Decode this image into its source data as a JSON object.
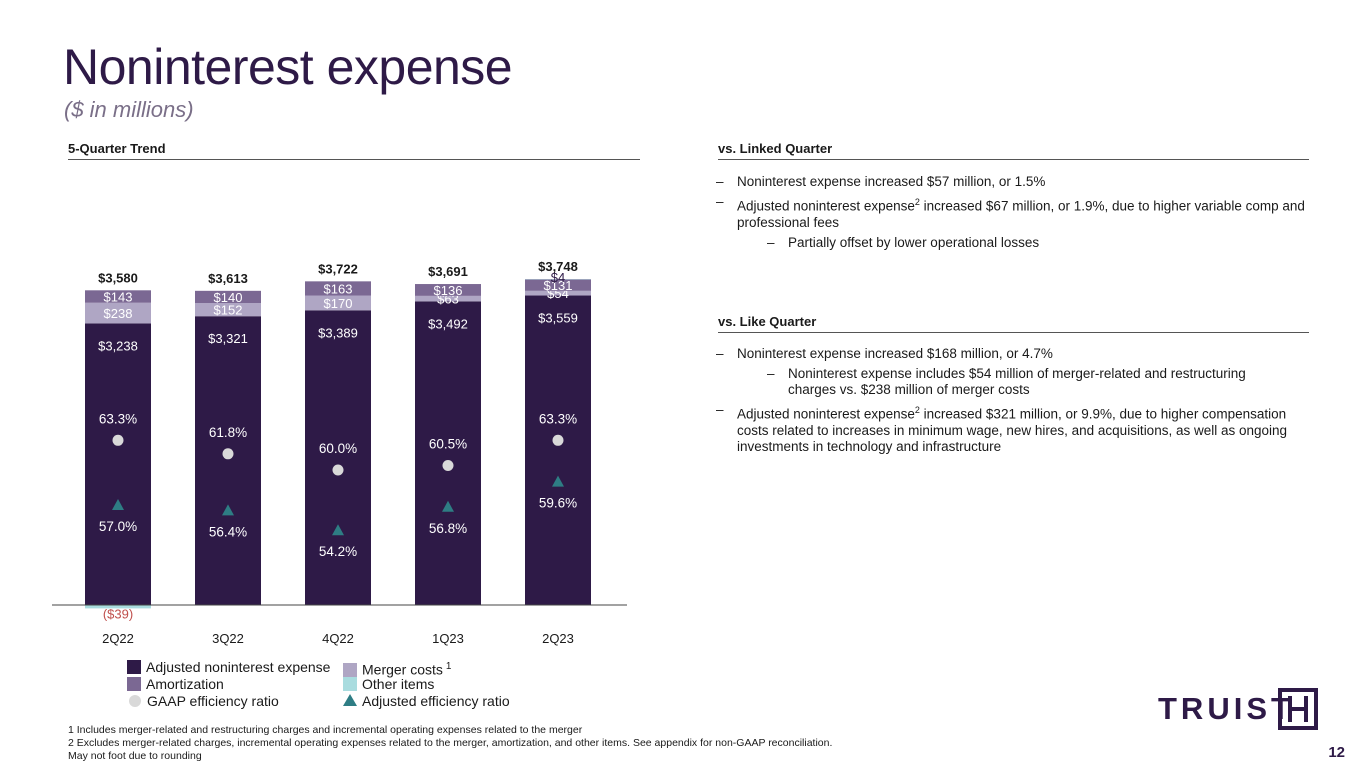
{
  "page": {
    "title": "Noninterest expense",
    "subtitle": "($ in millions)",
    "page_number": "12"
  },
  "left_section": {
    "heading": "5-Quarter Trend"
  },
  "linked_quarter": {
    "heading": "vs. Linked Quarter",
    "bullets": [
      {
        "dash": "–",
        "text": "Noninterest expense increased $57 million, or 1.5%"
      },
      {
        "dash": "–",
        "pre": "Adjusted noninterest expense",
        "sup": "2",
        "post": " increased $67 million, or 1.9%, due to higher variable comp and professional fees"
      },
      {
        "dash": "–",
        "text": "Partially offset by lower operational losses"
      }
    ]
  },
  "like_quarter": {
    "heading": "vs. Like Quarter",
    "bullets": [
      {
        "dash": "–",
        "text": "Noninterest expense increased $168 million, or 4.7%"
      },
      {
        "dash": "–",
        "text": "Noninterest expense includes $54 million of merger-related and restructuring charges vs. $238 million of merger costs"
      },
      {
        "dash": "–",
        "pre": "Adjusted noninterest expense",
        "sup": "2",
        "post": " increased $321 million, or 9.9%, due to higher compensation costs related to increases in minimum wage, new hires, and acquisitions, as well as ongoing investments in technology and infrastructure"
      }
    ]
  },
  "legend": {
    "adjusted": "Adjusted noninterest expense",
    "merger": "Merger costs",
    "merger_sup": "1",
    "amortization": "Amortization",
    "other": "Other items",
    "gaap": "GAAP efficiency ratio",
    "adj_ratio": "Adjusted efficiency ratio"
  },
  "footnotes": [
    "1 Includes merger-related and restructuring charges and incremental operating expenses related to the merger",
    "2 Excludes merger-related charges, incremental operating expenses related to the merger, amortization, and other items. See appendix for non-GAAP reconciliation.",
    "May not foot due to rounding"
  ],
  "logo": {
    "text": "TRUIST"
  },
  "colors": {
    "adjusted": "#2e1a47",
    "merger": "#afa6c4",
    "amortization": "#7b6893",
    "other": "#a9dcdf",
    "gaap": "#d9d9d9",
    "adj_ratio": "#2e7d84",
    "negative_label": "#c0504d"
  },
  "chart_data": {
    "type": "bar",
    "stacked": true,
    "categories": [
      "2Q22",
      "3Q22",
      "4Q22",
      "1Q23",
      "2Q23"
    ],
    "series": [
      {
        "name": "Adjusted noninterest expense",
        "values": [
          3238,
          3321,
          3389,
          3492,
          3559
        ],
        "labels": [
          "$3,238",
          "$3,321",
          "$3,389",
          "$3,492",
          "$3,559"
        ]
      },
      {
        "name": "Merger costs",
        "values": [
          238,
          152,
          170,
          63,
          54
        ],
        "labels": [
          "$238",
          "$152",
          "$170",
          "$63",
          "$54"
        ]
      },
      {
        "name": "Amortization",
        "values": [
          143,
          140,
          163,
          136,
          131
        ],
        "labels": [
          "$143",
          "$140",
          "$163",
          "$136",
          "$131"
        ]
      },
      {
        "name": "Other items",
        "values": [
          -39,
          0,
          0,
          0,
          4
        ],
        "labels": [
          "($39)",
          "",
          "",
          "",
          "$4"
        ]
      }
    ],
    "totals": [
      "$3,580",
      "$3,613",
      "$3,722",
      "$3,691",
      "$3,748"
    ],
    "gaap_efficiency_ratio": {
      "values": [
        63.3,
        61.8,
        60.0,
        60.5,
        63.3
      ],
      "labels": [
        "63.3%",
        "61.8%",
        "60.0%",
        "60.5%",
        "63.3%"
      ]
    },
    "adjusted_efficiency_ratio": {
      "values": [
        57.0,
        56.4,
        54.2,
        56.8,
        59.6
      ],
      "labels": [
        "57.0%",
        "56.4%",
        "54.2%",
        "56.8%",
        "59.6%"
      ]
    },
    "ratio_axis_range": [
      50,
      70
    ]
  }
}
